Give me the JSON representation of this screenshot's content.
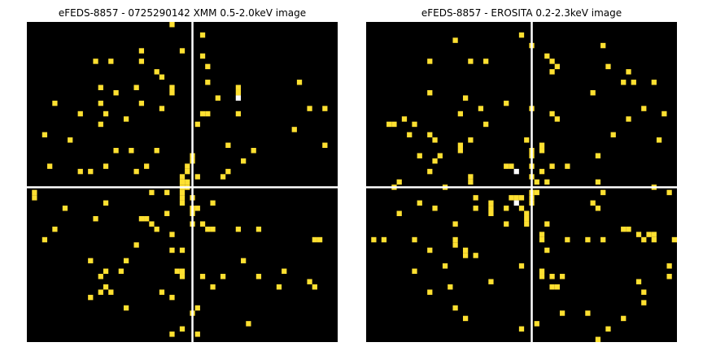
{
  "chart_data": [
    {
      "type": "heatmap",
      "title": "eFEDS-8857 - 0725290142 XMM 0.5-2.0keV image",
      "background_color": "#000000",
      "pixel_color": "#ffe031",
      "bright_pixel_color": "#ffffff",
      "crosshair_color": "#ffffff",
      "grid_size": 61,
      "crosshair_col": 32,
      "crosshair_row": 31,
      "pixels": [
        [
          28,
          0
        ],
        [
          34,
          2
        ],
        [
          22,
          5
        ],
        [
          30,
          5
        ],
        [
          34,
          6
        ],
        [
          13,
          7
        ],
        [
          16,
          7
        ],
        [
          22,
          7
        ],
        [
          35,
          8
        ],
        [
          25,
          9
        ],
        [
          26,
          10
        ],
        [
          35,
          11
        ],
        [
          14,
          12
        ],
        [
          28,
          12
        ],
        [
          17,
          13
        ],
        [
          21,
          12
        ],
        [
          28,
          13
        ],
        [
          41,
          13
        ],
        [
          37,
          14
        ],
        [
          14,
          15
        ],
        [
          41,
          12
        ],
        [
          22,
          15
        ],
        [
          53,
          11
        ],
        [
          58,
          16
        ],
        [
          5,
          15
        ],
        [
          10,
          17
        ],
        [
          15,
          17
        ],
        [
          26,
          16
        ],
        [
          34,
          17
        ],
        [
          35,
          17
        ],
        [
          41,
          17
        ],
        [
          55,
          16
        ],
        [
          19,
          18
        ],
        [
          14,
          19
        ],
        [
          33,
          19
        ],
        [
          52,
          20
        ],
        [
          3,
          21
        ],
        [
          8,
          22
        ],
        [
          39,
          23
        ],
        [
          58,
          23
        ],
        [
          17,
          24
        ],
        [
          20,
          24
        ],
        [
          25,
          24
        ],
        [
          44,
          24
        ],
        [
          32,
          25
        ],
        [
          42,
          26
        ],
        [
          4,
          27
        ],
        [
          15,
          27
        ],
        [
          23,
          27
        ],
        [
          31,
          27
        ],
        [
          32,
          26
        ],
        [
          31,
          28
        ],
        [
          10,
          28
        ],
        [
          12,
          28
        ],
        [
          21,
          28
        ],
        [
          33,
          29
        ],
        [
          30,
          29
        ],
        [
          38,
          29
        ],
        [
          39,
          28
        ],
        [
          30,
          30
        ],
        [
          31,
          30
        ],
        [
          1,
          32
        ],
        [
          1,
          33
        ],
        [
          24,
          32
        ],
        [
          27,
          32
        ],
        [
          30,
          32
        ],
        [
          31,
          31
        ],
        [
          30,
          31
        ],
        [
          32,
          33
        ],
        [
          30,
          34
        ],
        [
          30,
          33
        ],
        [
          36,
          34
        ],
        [
          15,
          34
        ],
        [
          7,
          35
        ],
        [
          32,
          35
        ],
        [
          33,
          35
        ],
        [
          27,
          36
        ],
        [
          32,
          36
        ],
        [
          13,
          37
        ],
        [
          22,
          37
        ],
        [
          23,
          37
        ],
        [
          24,
          38
        ],
        [
          5,
          39
        ],
        [
          25,
          39
        ],
        [
          32,
          38
        ],
        [
          34,
          38
        ],
        [
          35,
          39
        ],
        [
          36,
          39
        ],
        [
          41,
          39
        ],
        [
          45,
          39
        ],
        [
          28,
          40
        ],
        [
          3,
          41
        ],
        [
          21,
          42
        ],
        [
          28,
          43
        ],
        [
          30,
          43
        ],
        [
          56,
          41
        ],
        [
          57,
          41
        ],
        [
          12,
          45
        ],
        [
          19,
          45
        ],
        [
          42,
          45
        ],
        [
          15,
          47
        ],
        [
          18,
          47
        ],
        [
          29,
          47
        ],
        [
          30,
          47
        ],
        [
          30,
          48
        ],
        [
          14,
          48
        ],
        [
          34,
          48
        ],
        [
          38,
          48
        ],
        [
          45,
          48
        ],
        [
          50,
          47
        ],
        [
          15,
          50
        ],
        [
          14,
          51
        ],
        [
          16,
          51
        ],
        [
          36,
          50
        ],
        [
          49,
          50
        ],
        [
          55,
          49
        ],
        [
          56,
          50
        ],
        [
          26,
          51
        ],
        [
          28,
          52
        ],
        [
          12,
          52
        ],
        [
          19,
          54
        ],
        [
          32,
          55
        ],
        [
          33,
          54
        ],
        [
          43,
          57
        ],
        [
          30,
          58
        ],
        [
          33,
          59
        ],
        [
          28,
          59
        ],
        [
          22,
          61
        ],
        [
          43,
          61
        ]
      ],
      "bright_pixels": [
        [
          41,
          14
        ]
      ]
    },
    {
      "type": "heatmap",
      "title": "eFEDS-8857 -  EROSITA 0.2-2.3keV image",
      "background_color": "#000000",
      "pixel_color": "#ffe031",
      "bright_pixel_color": "#ffffff",
      "crosshair_color": "#ffffff",
      "grid_size": 61,
      "crosshair_col": 32,
      "crosshair_row": 31,
      "pixels": [
        [
          30,
          2
        ],
        [
          17,
          3
        ],
        [
          32,
          4
        ],
        [
          46,
          4
        ],
        [
          12,
          7
        ],
        [
          20,
          7
        ],
        [
          23,
          7
        ],
        [
          35,
          6
        ],
        [
          36,
          7
        ],
        [
          37,
          8
        ],
        [
          36,
          9
        ],
        [
          47,
          8
        ],
        [
          51,
          9
        ],
        [
          12,
          13
        ],
        [
          50,
          11
        ],
        [
          52,
          11
        ],
        [
          56,
          11
        ],
        [
          44,
          13
        ],
        [
          19,
          14
        ],
        [
          27,
          15
        ],
        [
          22,
          16
        ],
        [
          32,
          16
        ],
        [
          54,
          16
        ],
        [
          18,
          17
        ],
        [
          36,
          17
        ],
        [
          37,
          18
        ],
        [
          58,
          17
        ],
        [
          51,
          18
        ],
        [
          7,
          18
        ],
        [
          4,
          19
        ],
        [
          5,
          19
        ],
        [
          9,
          19
        ],
        [
          23,
          19
        ],
        [
          8,
          21
        ],
        [
          12,
          21
        ],
        [
          31,
          22
        ],
        [
          20,
          22
        ],
        [
          48,
          21
        ],
        [
          57,
          22
        ],
        [
          13,
          22
        ],
        [
          18,
          23
        ],
        [
          18,
          24
        ],
        [
          34,
          23
        ],
        [
          34,
          24
        ],
        [
          32,
          24
        ],
        [
          10,
          25
        ],
        [
          14,
          25
        ],
        [
          13,
          26
        ],
        [
          32,
          25
        ],
        [
          45,
          25
        ],
        [
          36,
          27
        ],
        [
          39,
          27
        ],
        [
          27,
          27
        ],
        [
          28,
          27
        ],
        [
          12,
          28
        ],
        [
          32,
          27
        ],
        [
          32,
          29
        ],
        [
          34,
          28
        ],
        [
          20,
          29
        ],
        [
          6,
          30
        ],
        [
          20,
          30
        ],
        [
          45,
          30
        ],
        [
          5,
          31
        ],
        [
          15,
          31
        ],
        [
          33,
          30
        ],
        [
          35,
          30
        ],
        [
          33,
          32
        ],
        [
          32,
          32
        ],
        [
          28,
          33
        ],
        [
          29,
          33
        ],
        [
          30,
          33
        ],
        [
          32,
          33
        ],
        [
          32,
          34
        ],
        [
          21,
          33
        ],
        [
          46,
          32
        ],
        [
          56,
          31
        ],
        [
          59,
          32
        ],
        [
          10,
          34
        ],
        [
          24,
          34
        ],
        [
          24,
          35
        ],
        [
          24,
          36
        ],
        [
          21,
          35
        ],
        [
          27,
          35
        ],
        [
          30,
          35
        ],
        [
          13,
          35
        ],
        [
          31,
          36
        ],
        [
          31,
          37
        ],
        [
          31,
          38
        ],
        [
          44,
          34
        ],
        [
          45,
          35
        ],
        [
          6,
          36
        ],
        [
          17,
          38
        ],
        [
          27,
          38
        ],
        [
          35,
          38
        ],
        [
          1,
          41
        ],
        [
          9,
          41
        ],
        [
          17,
          41
        ],
        [
          34,
          40
        ],
        [
          34,
          41
        ],
        [
          39,
          41
        ],
        [
          43,
          41
        ],
        [
          46,
          41
        ],
        [
          50,
          39
        ],
        [
          51,
          39
        ],
        [
          53,
          40
        ],
        [
          55,
          40
        ],
        [
          56,
          40
        ],
        [
          56,
          41
        ],
        [
          54,
          41
        ],
        [
          60,
          41
        ],
        [
          12,
          43
        ],
        [
          19,
          43
        ],
        [
          19,
          44
        ],
        [
          21,
          44
        ],
        [
          35,
          43
        ],
        [
          17,
          42
        ],
        [
          15,
          46
        ],
        [
          9,
          47
        ],
        [
          30,
          46
        ],
        [
          34,
          47
        ],
        [
          34,
          48
        ],
        [
          36,
          48
        ],
        [
          38,
          48
        ],
        [
          37,
          50
        ],
        [
          36,
          50
        ],
        [
          24,
          49
        ],
        [
          53,
          49
        ],
        [
          59,
          46
        ],
        [
          59,
          48
        ],
        [
          16,
          50
        ],
        [
          12,
          51
        ],
        [
          54,
          51
        ],
        [
          54,
          53
        ],
        [
          17,
          54
        ],
        [
          19,
          56
        ],
        [
          38,
          55
        ],
        [
          43,
          55
        ],
        [
          50,
          56
        ],
        [
          33,
          57
        ],
        [
          30,
          58
        ],
        [
          47,
          58
        ],
        [
          45,
          60
        ],
        [
          30,
          61
        ],
        [
          3,
          41
        ]
      ],
      "bright_pixels": [
        [
          29,
          28
        ],
        [
          29,
          34
        ]
      ]
    }
  ]
}
